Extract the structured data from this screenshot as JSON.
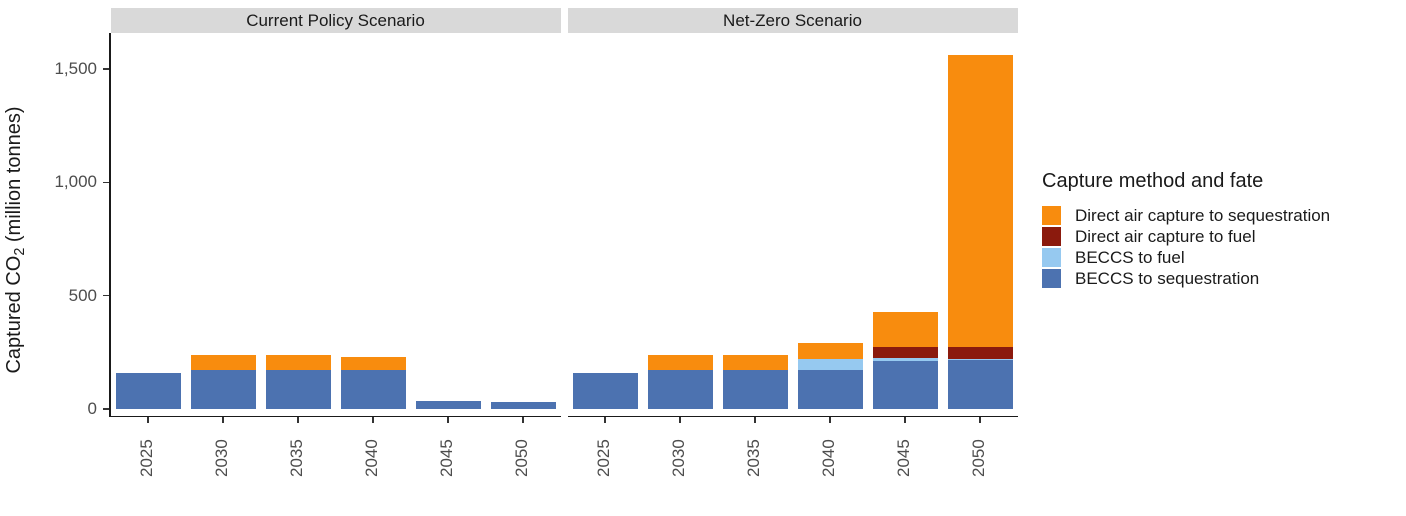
{
  "figure": {
    "y_axis": {
      "title_prefix": "Captured CO",
      "title_sub": "2",
      "title_suffix": " (million tonnes)",
      "ticks": [
        {
          "label": "0",
          "value": 0
        },
        {
          "label": "500",
          "value": 500
        },
        {
          "label": "1,000",
          "value": 1000
        },
        {
          "label": "1,500",
          "value": 1500
        }
      ]
    },
    "legend": {
      "title": "Capture method and fate",
      "entries": [
        {
          "id": "dac_seq",
          "label": "Direct air capture to sequestration",
          "color": "#F88C0E"
        },
        {
          "id": "dac_fuel",
          "label": "Direct air capture to fuel",
          "color": "#8B1A0D"
        },
        {
          "id": "beccs_fuel",
          "label": "BECCS to fuel",
          "color": "#96C9F0"
        },
        {
          "id": "beccs_seq",
          "label": "BECCS to sequestration",
          "color": "#4C72B0"
        }
      ]
    },
    "colors": {
      "strip_background": "#d9d9d9",
      "axis_line": "#1a1a1a",
      "axis_text": "#4d4d4d"
    }
  },
  "chart_data": {
    "type": "bar",
    "stacked": true,
    "unit": "million tonnes CO2 captured per year",
    "categories": [
      "2025",
      "2030",
      "2035",
      "2040",
      "2045",
      "2050"
    ],
    "ylim": [
      0,
      1600
    ],
    "grid": false,
    "legend_position": "right",
    "facets": [
      {
        "label": "Current Policy Scenario",
        "series": [
          {
            "id": "beccs_seq",
            "name": "BECCS to sequestration",
            "color": "#4C72B0",
            "values": [
              160,
              170,
              170,
              170,
              35,
              30
            ]
          },
          {
            "id": "beccs_fuel",
            "name": "BECCS to fuel",
            "color": "#96C9F0",
            "values": [
              0,
              0,
              0,
              0,
              0,
              0
            ]
          },
          {
            "id": "dac_fuel",
            "name": "Direct air capture to fuel",
            "color": "#8B1A0D",
            "values": [
              0,
              0,
              0,
              0,
              0,
              0
            ]
          },
          {
            "id": "dac_seq",
            "name": "Direct air capture to sequestration",
            "color": "#F88C0E",
            "values": [
              0,
              70,
              70,
              60,
              0,
              0
            ]
          }
        ],
        "totals": [
          160,
          240,
          240,
          230,
          35,
          30
        ]
      },
      {
        "label": "Net-Zero Scenario",
        "series": [
          {
            "id": "beccs_seq",
            "name": "BECCS to sequestration",
            "color": "#4C72B0",
            "values": [
              160,
              170,
              170,
              170,
              210,
              215
            ]
          },
          {
            "id": "beccs_fuel",
            "name": "BECCS to fuel",
            "color": "#96C9F0",
            "values": [
              0,
              0,
              0,
              50,
              15,
              5
            ]
          },
          {
            "id": "dac_fuel",
            "name": "Direct air capture to fuel",
            "color": "#8B1A0D",
            "values": [
              0,
              0,
              0,
              0,
              50,
              55
            ]
          },
          {
            "id": "dac_seq",
            "name": "Direct air capture to sequestration",
            "color": "#F88C0E",
            "values": [
              0,
              70,
              70,
              70,
              155,
              1285
            ]
          }
        ],
        "totals": [
          160,
          240,
          240,
          290,
          430,
          1560
        ]
      }
    ]
  }
}
